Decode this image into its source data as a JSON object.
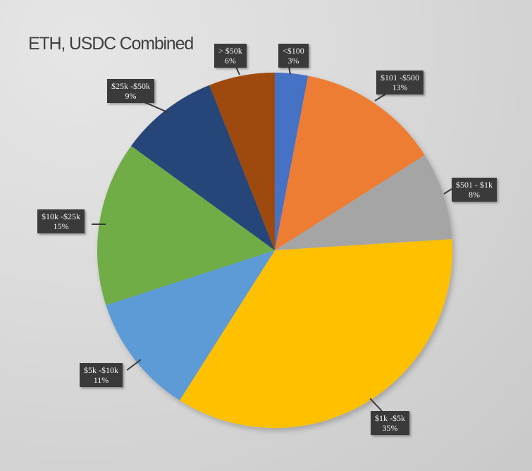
{
  "chart_data": {
    "type": "pie",
    "title": "ETH, USDC Combined",
    "start_angle_deg": 0,
    "direction": "clockwise",
    "categories": [
      "<$100",
      "$101 -$500",
      "$501 - $1k",
      "$1k -$5k",
      "$5k -$10k",
      "$10k -$25k",
      "$25k -$50k",
      "> $50k"
    ],
    "values": [
      3,
      13,
      8,
      35,
      11,
      15,
      9,
      6
    ],
    "value_unit": "%",
    "colors": [
      "#4472C4",
      "#ED7D31",
      "#A5A5A5",
      "#FFC000",
      "#5B9BD5",
      "#70AD47",
      "#264478",
      "#9E480E"
    ],
    "data_labels": [
      {
        "label": "<$100",
        "pct": "3%"
      },
      {
        "label": "$101 -$500",
        "pct": "13%"
      },
      {
        "label": "$501 - $1k",
        "pct": "8%"
      },
      {
        "label": "$1k -$5k",
        "pct": "35%"
      },
      {
        "label": "$5k -$10k",
        "pct": "11%"
      },
      {
        "label": "$10k -$25k",
        "pct": "15%"
      },
      {
        "label": "$25k -$50k",
        "pct": "9%"
      },
      {
        "label": "> $50k",
        "pct": "6%"
      }
    ],
    "legend": "none"
  }
}
